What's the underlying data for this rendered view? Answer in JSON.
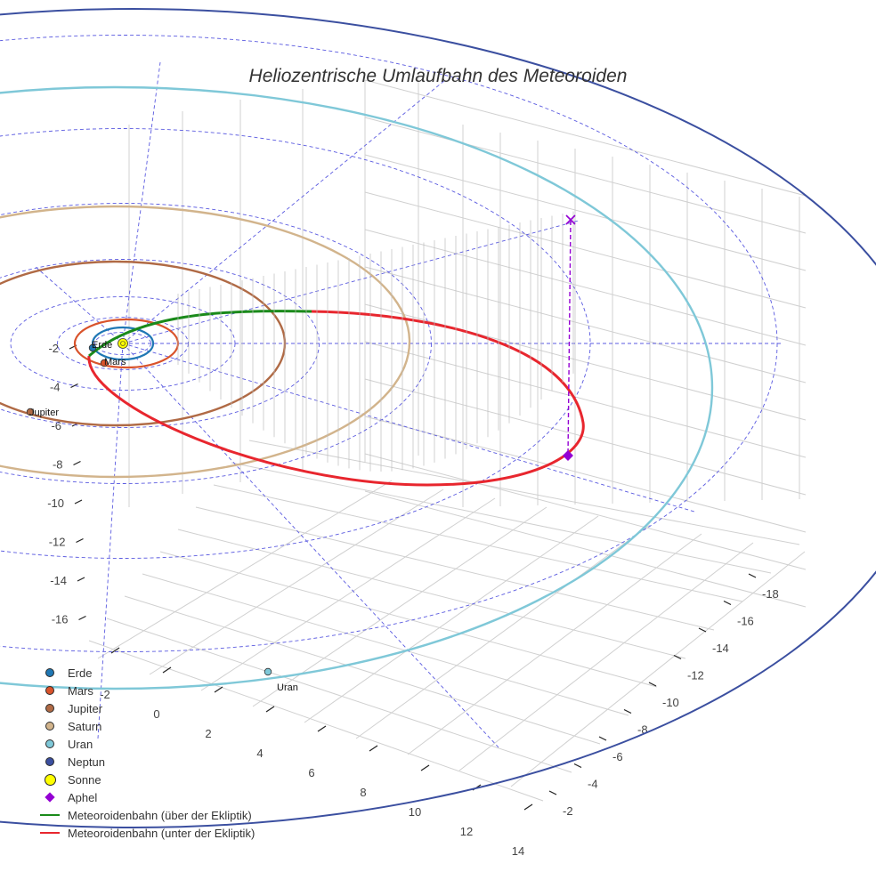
{
  "chart_data": {
    "type": "3d-line",
    "title": "Heliozentrische Umlaufbahn des Meteoroiden",
    "y_axis": {
      "ticks": [
        "-2",
        "-4",
        "-6",
        "-8",
        "-10",
        "-12",
        "-14",
        "-16"
      ]
    },
    "x_axis": {
      "ticks": [
        "-2",
        "0",
        "2",
        "4",
        "6",
        "8",
        "10",
        "12",
        "14"
      ]
    },
    "z_axis": {
      "ticks": [
        "-2",
        "-4",
        "-6",
        "-8",
        "-10",
        "-12",
        "-14",
        "-16",
        "-18"
      ]
    },
    "planet_labels": [
      "Erde",
      "Mars",
      "Jupiter",
      "Uran"
    ],
    "series": [
      {
        "name": "Erde",
        "color": "#1f77b4",
        "marker": "circle"
      },
      {
        "name": "Mars",
        "color": "#d9532b",
        "marker": "circle"
      },
      {
        "name": "Jupiter",
        "color": "#b06a45",
        "marker": "circle"
      },
      {
        "name": "Saturn",
        "color": "#d2b48c",
        "marker": "circle"
      },
      {
        "name": "Uran",
        "color": "#7fc8d8",
        "marker": "circle"
      },
      {
        "name": "Neptun",
        "color": "#3b4fa0",
        "marker": "circle"
      },
      {
        "name": "Sonne",
        "color": "#ffff00",
        "marker": "circle-large"
      },
      {
        "name": "Aphel",
        "color": "#9400d3",
        "marker": "diamond"
      },
      {
        "name": "Meteoroidenbahn (über der Ekliptik)",
        "color": "#1a8a1a",
        "marker": "line"
      },
      {
        "name": "Meteoroidenbahn (unter der Ekliptik)",
        "color": "#e8262e",
        "marker": "line"
      }
    ],
    "legend_position": "bottom-left",
    "grid": true
  }
}
